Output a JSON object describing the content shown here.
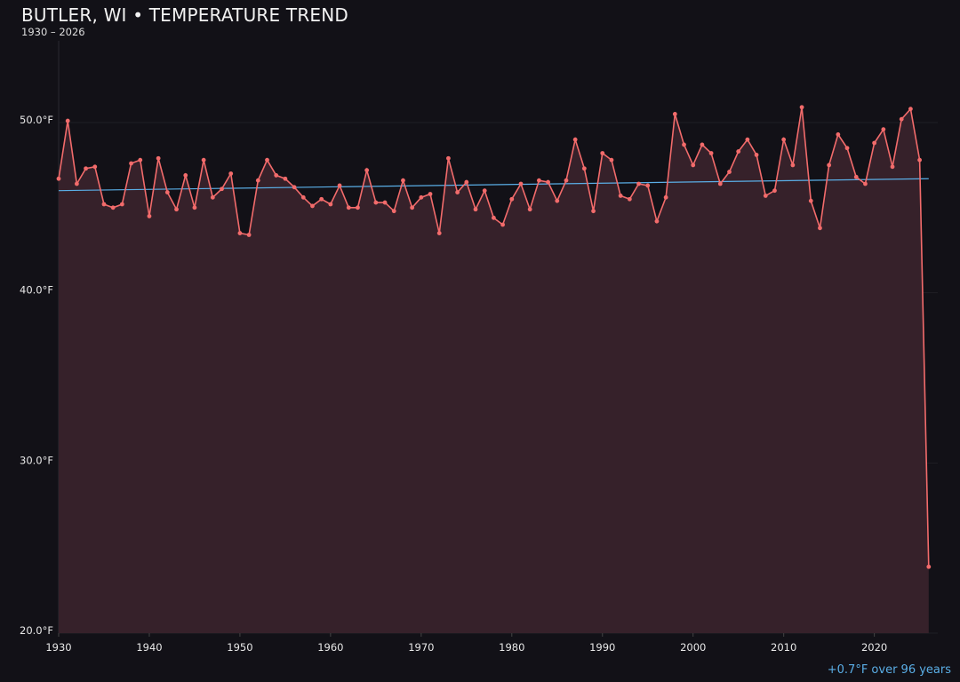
{
  "chart_data": {
    "type": "line",
    "title": "BUTLER, WI • TEMPERATURE TREND",
    "subtitle": "1930 – 2026",
    "annotation": "+0.7°F over 96 years",
    "xlim": [
      1930,
      2027
    ],
    "ylim": [
      20,
      54.8
    ],
    "x_ticks": [
      1930,
      1940,
      1950,
      1960,
      1970,
      1980,
      1990,
      2000,
      2010,
      2020
    ],
    "y_ticks": [
      20,
      30,
      40,
      50
    ],
    "y_tick_labels": [
      "20.0°F",
      "30.0°F",
      "40.0°F",
      "50.0°F"
    ],
    "grid": true,
    "colors": {
      "series": "#f26b6b",
      "fill": "#36212a",
      "trend": "#5aaee6",
      "background": "#121117"
    },
    "x": [
      1930,
      1931,
      1932,
      1933,
      1934,
      1935,
      1936,
      1937,
      1938,
      1939,
      1940,
      1941,
      1942,
      1943,
      1944,
      1945,
      1946,
      1947,
      1948,
      1949,
      1950,
      1951,
      1952,
      1953,
      1954,
      1955,
      1956,
      1957,
      1958,
      1959,
      1960,
      1961,
      1962,
      1963,
      1964,
      1965,
      1966,
      1967,
      1968,
      1969,
      1970,
      1971,
      1972,
      1973,
      1974,
      1975,
      1976,
      1977,
      1978,
      1979,
      1980,
      1981,
      1982,
      1983,
      1984,
      1985,
      1986,
      1987,
      1988,
      1989,
      1990,
      1991,
      1992,
      1993,
      1994,
      1995,
      1996,
      1997,
      1998,
      1999,
      2000,
      2001,
      2002,
      2003,
      2004,
      2005,
      2006,
      2007,
      2008,
      2009,
      2010,
      2011,
      2012,
      2013,
      2014,
      2015,
      2016,
      2017,
      2018,
      2019,
      2020,
      2021,
      2022,
      2023,
      2024,
      2025,
      2026
    ],
    "values": [
      46.7,
      50.1,
      46.4,
      47.3,
      47.4,
      45.2,
      45.0,
      45.2,
      47.6,
      47.8,
      44.5,
      47.9,
      45.9,
      44.9,
      46.9,
      45.0,
      47.8,
      45.6,
      46.1,
      47.0,
      43.5,
      43.4,
      46.6,
      47.8,
      46.9,
      46.7,
      46.2,
      45.6,
      45.1,
      45.5,
      45.2,
      46.3,
      45.0,
      45.0,
      47.2,
      45.3,
      45.3,
      44.8,
      46.6,
      45.0,
      45.6,
      45.8,
      43.5,
      47.9,
      45.9,
      46.5,
      44.9,
      46.0,
      44.4,
      44.0,
      45.5,
      46.4,
      44.9,
      46.6,
      46.5,
      45.4,
      46.6,
      49.0,
      47.3,
      44.8,
      48.2,
      47.8,
      45.7,
      45.5,
      46.4,
      46.3,
      44.2,
      45.6,
      50.5,
      48.7,
      47.5,
      48.7,
      48.2,
      46.4,
      47.1,
      48.3,
      49.0,
      48.1,
      45.7,
      46.0,
      49.0,
      47.5,
      50.9,
      45.4,
      43.8,
      47.5,
      49.3,
      48.5,
      46.8,
      46.4,
      48.8,
      49.6,
      47.4,
      50.2,
      50.8,
      47.8,
      23.9
    ],
    "trend": {
      "x": [
        1930,
        2026
      ],
      "y": [
        46.0,
        46.7
      ]
    }
  }
}
